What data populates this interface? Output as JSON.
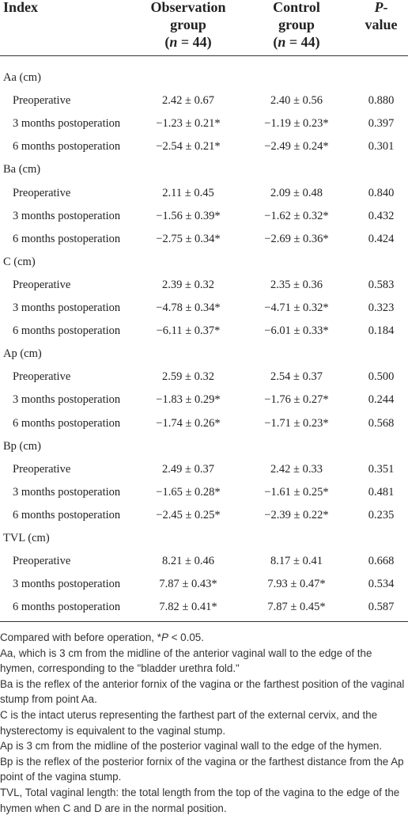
{
  "header": {
    "columns": [
      {
        "lines": [
          [
            "Index"
          ]
        ]
      },
      {
        "lines": [
          [
            "Observation"
          ],
          [
            "group"
          ],
          [
            "(",
            {
              "text": "n",
              "italic": true
            },
            " = 44)"
          ]
        ]
      },
      {
        "lines": [
          [
            "Control"
          ],
          [
            "group"
          ],
          [
            "(",
            {
              "text": "n",
              "italic": true
            },
            " = 44)"
          ]
        ]
      },
      {
        "lines": [
          [
            {
              "text": "P",
              "italic": true
            },
            "-"
          ],
          [
            "value"
          ]
        ]
      }
    ]
  },
  "table": {
    "groups": [
      {
        "label": "Aa (cm)",
        "rows": [
          [
            "Preoperative",
            "2.42 ± 0.67",
            "2.40 ± 0.56",
            "0.880"
          ],
          [
            "3 months postoperation",
            "−1.23 ± 0.21*",
            "−1.19 ± 0.23*",
            "0.397"
          ],
          [
            "6 months postoperation",
            "−2.54 ± 0.21*",
            "−2.49 ± 0.24*",
            "0.301"
          ]
        ]
      },
      {
        "label": "Ba (cm)",
        "rows": [
          [
            "Preoperative",
            "2.11 ± 0.45",
            "2.09 ± 0.48",
            "0.840"
          ],
          [
            "3 months postoperation",
            "−1.56 ± 0.39*",
            "−1.62 ± 0.32*",
            "0.432"
          ],
          [
            "6 months postoperation",
            "−2.75 ± 0.34*",
            "−2.69 ± 0.36*",
            "0.424"
          ]
        ]
      },
      {
        "label": "C (cm)",
        "rows": [
          [
            "Preoperative",
            "2.39 ± 0.32",
            "2.35 ± 0.36",
            "0.583"
          ],
          [
            "3 months postoperation",
            "−4.78 ± 0.34*",
            "−4.71 ± 0.32*",
            "0.323"
          ],
          [
            "6 months postoperation",
            "−6.11 ± 0.37*",
            "−6.01 ± 0.33*",
            "0.184"
          ]
        ]
      },
      {
        "label": "Ap (cm)",
        "rows": [
          [
            "Preoperative",
            "2.59 ± 0.32",
            "2.54 ± 0.37",
            "0.500"
          ],
          [
            "3 months postoperation",
            "−1.83 ± 0.29*",
            "−1.76 ± 0.27*",
            "0.244"
          ],
          [
            "6 months postoperation",
            "−1.74 ± 0.26*",
            "−1.71 ± 0.23*",
            "0.568"
          ]
        ]
      },
      {
        "label": "Bp (cm)",
        "rows": [
          [
            "Preoperative",
            "2.49 ± 0.37",
            "2.42 ± 0.33",
            "0.351"
          ],
          [
            "3 months postoperation",
            "−1.65 ± 0.28*",
            "−1.61 ± 0.25*",
            "0.481"
          ],
          [
            "6 months postoperation",
            "−2.45 ± 0.25*",
            "−2.39 ± 0.22*",
            "0.235"
          ]
        ]
      },
      {
        "label": "TVL (cm)",
        "rows": [
          [
            "Preoperative",
            "8.21 ± 0.46",
            "8.17 ± 0.41",
            "0.668"
          ],
          [
            "3 months postoperation",
            "7.87 ± 0.43*",
            "7.93 ± 0.47*",
            "0.534"
          ],
          [
            "6 months postoperation",
            "7.82 ± 0.41*",
            "7.87 ± 0.45*",
            "0.587"
          ]
        ]
      }
    ]
  },
  "footnotes": [
    [
      "Compared with before operation, *",
      {
        "text": "P",
        "italic": true
      },
      " < 0.05."
    ],
    [
      "Aa, which is 3 cm from the midline of the anterior vaginal wall to the edge of the hymen, corresponding to the \"bladder urethra fold.\""
    ],
    [
      "Ba is the reflex of the anterior fornix of the vagina or the farthest position of the vaginal stump from point Aa."
    ],
    [
      "C is the intact uterus representing the farthest part of the external cervix, and the hysterectomy is equivalent to the vaginal stump."
    ],
    [
      "Ap is 3 cm from the midline of the posterior vaginal wall to the edge of the hymen."
    ],
    [
      "Bp is the reflex of the posterior fornix of the vagina or the farthest distance from the Ap point of the vagina stump."
    ],
    [
      "TVL, Total vaginal length: the total length from the top of the vagina to the edge of the hymen when C and D are in the normal position."
    ]
  ]
}
